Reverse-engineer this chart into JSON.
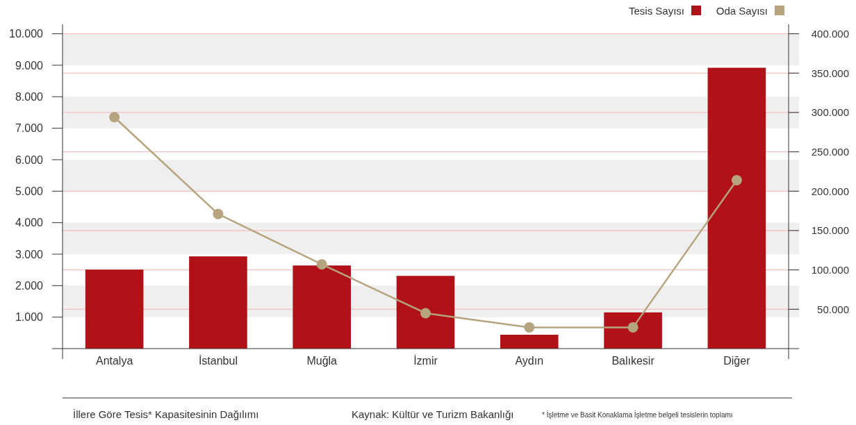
{
  "chart_data": {
    "type": "bar",
    "title": "İllere Göre Tesis* Kapasitesinin Dağılımı",
    "annotations": [
      "Kaynak: Kültür ve Turizm Bakanlığı",
      "* İşletme ve Basit Konaklama İşletme belgeli tesislerin toplamı"
    ],
    "categories": [
      "Antalya",
      "İstanbul",
      "Muğla",
      "İzmir",
      "Aydın",
      "Balıkesir",
      "Diğer"
    ],
    "series": [
      {
        "name": "Tesis Sayısı",
        "color": "#b01218",
        "values": [
          2510,
          2930,
          2640,
          2310,
          440,
          1150,
          8920
        ]
      },
      {
        "name": "Oda Sayısı",
        "type": "line",
        "axis": "y2",
        "color": "#b5a47e",
        "values": [
          294000,
          171000,
          107000,
          45000,
          27000,
          27000,
          214000
        ]
      }
    ],
    "ylim": [
      0,
      10300
    ],
    "yticks": [
      {
        "value": 1000,
        "label": "1.000"
      },
      {
        "value": 2000,
        "label": "2.000"
      },
      {
        "value": 3000,
        "label": "3.000"
      },
      {
        "value": 4000,
        "label": "4.000"
      },
      {
        "value": 5000,
        "label": "5.000"
      },
      {
        "value": 6000,
        "label": "6.000"
      },
      {
        "value": 7000,
        "label": "7.000"
      },
      {
        "value": 8000,
        "label": "8.000"
      },
      {
        "value": 9000,
        "label": "9.000"
      },
      {
        "value": 10000,
        "label": "10.000"
      }
    ],
    "y2lim": [
      0,
      412000
    ],
    "y2ticks": [
      {
        "value": 50000,
        "label": "50.000"
      },
      {
        "value": 100000,
        "label": "100.000"
      },
      {
        "value": 150000,
        "label": "150.000"
      },
      {
        "value": 200000,
        "label": "200.000"
      },
      {
        "value": 250000,
        "label": "250.000"
      },
      {
        "value": 300000,
        "label": "300.000"
      },
      {
        "value": 350000,
        "label": "350.000"
      },
      {
        "value": 400000,
        "label": "400.000"
      }
    ],
    "grid": "y",
    "legend": "top right",
    "marker": "circle",
    "line_style": "solid"
  }
}
